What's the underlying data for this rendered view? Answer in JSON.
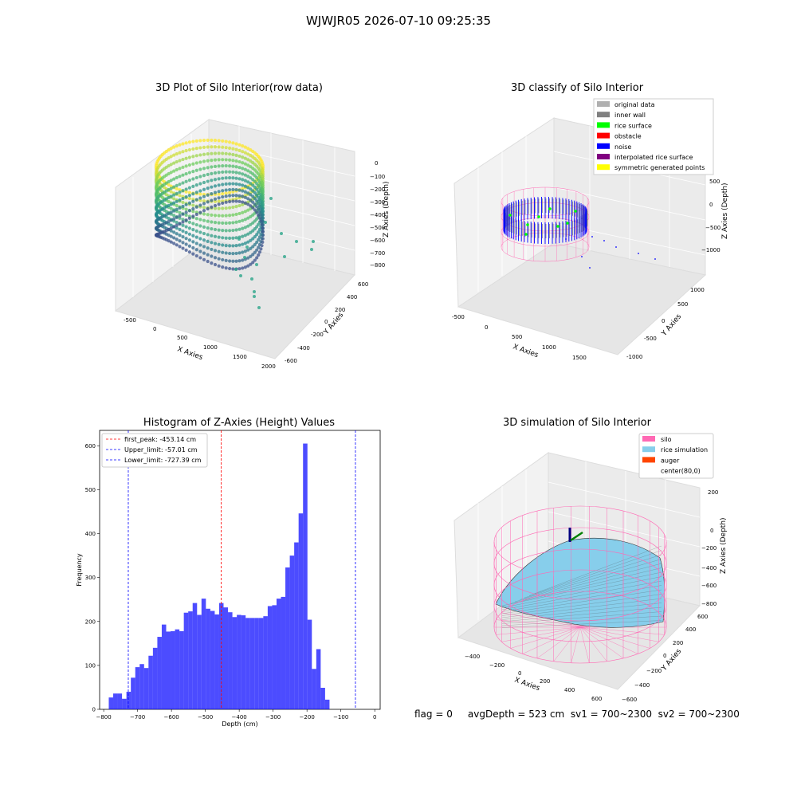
{
  "figure": {
    "suptitle": "WJWJR05 2026-07-10 09:25:35",
    "footer": "flag = 0     avgDepth = 523 cm  sv1 = 700~2300  sv2 = 700~2300"
  },
  "panels": {
    "raw": {
      "title": "3D Plot of Silo Interior(row data)",
      "xlabel": "X Axies",
      "ylabel": "Y Axies",
      "zlabel": "Z Axies (Depth)",
      "xticks": [
        "-500",
        "0",
        "500",
        "1000",
        "1500",
        "2000"
      ],
      "yticks": [
        "-600",
        "-400",
        "-200",
        "0",
        "200",
        "400",
        "600"
      ],
      "zticks": [
        "0",
        "−100",
        "−200",
        "−300",
        "−400",
        "−500",
        "−600",
        "−700",
        "−800"
      ]
    },
    "classify": {
      "title": "3D classify of Silo Interior",
      "xlabel": "X Axies",
      "ylabel": "Y Axies",
      "zlabel": "Z Axies (Depth)",
      "xticks": [
        "-500",
        "0",
        "500",
        "1000",
        "1500"
      ],
      "yticks": [
        "-1000",
        "-500",
        "0",
        "500",
        "1000"
      ],
      "zticks": [
        "500",
        "0",
        "−500",
        "−1000"
      ],
      "legend": [
        {
          "label": "original data",
          "color": "#b0b0b0"
        },
        {
          "label": "inner wall",
          "color": "#808080"
        },
        {
          "label": "rice surface",
          "color": "#00ff00"
        },
        {
          "label": "obstacle",
          "color": "#ff0000"
        },
        {
          "label": "noise",
          "color": "#0000ff"
        },
        {
          "label": "interpolated rice surface",
          "color": "#800080"
        },
        {
          "label": "symmetric generated points",
          "color": "#ffff00"
        }
      ]
    },
    "simulation": {
      "title": "3D simulation of Silo Interior",
      "xlabel": "X Axies",
      "ylabel": "Y Axies",
      "zlabel": "Z Axies (Depth)",
      "xticks": [
        "−400",
        "−200",
        "0",
        "200",
        "400",
        "600"
      ],
      "yticks": [
        "−600",
        "−400",
        "−200",
        "0",
        "200",
        "400",
        "600"
      ],
      "zticks": [
        "200",
        "0",
        "−200",
        "−400",
        "−600",
        "−800"
      ],
      "legend": [
        {
          "label": "silo",
          "color": "#ff69b4"
        },
        {
          "label": "rice simulation",
          "color": "#87ceeb"
        },
        {
          "label": "auger",
          "color": "#ff4500"
        },
        {
          "label": "center(80,0)",
          "color": "none"
        }
      ]
    }
  },
  "chart_data": [
    {
      "type": "bar",
      "title": "Histogram of Z-Axies (Height) Values",
      "xlabel": "Depth (cm)",
      "ylabel": "Frequency",
      "xlim": [
        -812,
        16
      ],
      "ylim": [
        0,
        635
      ],
      "xticks": [
        -800,
        -700,
        -600,
        -500,
        -400,
        -300,
        -200,
        -100,
        0
      ],
      "yticks": [
        0,
        100,
        200,
        300,
        400,
        500,
        600
      ],
      "bar_color": "#0000ff",
      "bin_start": -785,
      "bin_width": 13.03,
      "values": [
        27,
        36,
        36,
        24,
        40,
        72,
        96,
        103,
        94,
        122,
        140,
        165,
        193,
        177,
        178,
        182,
        178,
        220,
        223,
        242,
        215,
        252,
        229,
        224,
        216,
        242,
        232,
        221,
        210,
        215,
        214,
        208,
        208,
        208,
        208,
        212,
        235,
        237,
        252,
        256,
        323,
        350,
        380,
        446,
        605,
        204,
        92,
        137,
        49,
        22
      ],
      "vlines": [
        {
          "label": "first_peak: -453.14 cm",
          "x": -453.14,
          "color": "#ff0000"
        },
        {
          "label": "Upper_limit: -57.01 cm",
          "x": -57.01,
          "color": "#0000ff"
        },
        {
          "label": "Lower_limit: -727.39 cm",
          "x": -727.39,
          "color": "#0000ff"
        }
      ],
      "legend_position": "upper-left"
    }
  ]
}
